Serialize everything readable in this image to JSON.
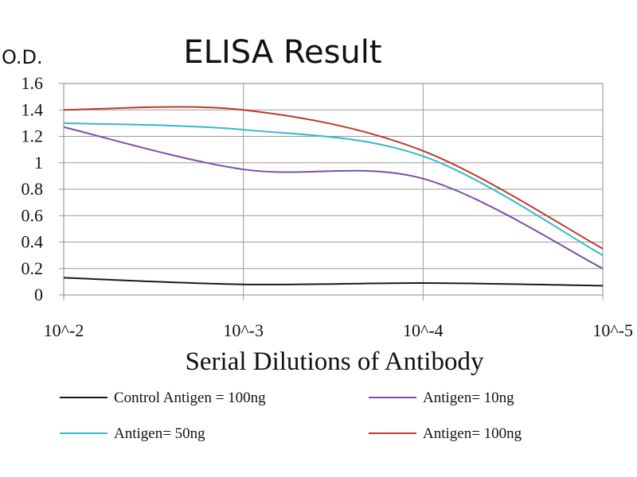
{
  "chart_data": {
    "type": "line",
    "title": "ELISA Result",
    "ylabel": "O.D.",
    "xlabel": "Serial Dilutions of Antibody",
    "ylim": [
      0,
      1.6
    ],
    "y_ticks": [
      0,
      0.2,
      0.4,
      0.6,
      0.8,
      1,
      1.2,
      1.4,
      1.6
    ],
    "y_tick_labels": [
      "0",
      "0.2",
      "0.4",
      "0.6",
      "0.8",
      "1",
      "1.2",
      "1.4",
      "1.6"
    ],
    "categories": [
      "10^-2",
      "10^-3",
      "10^-4",
      "10^-5"
    ],
    "grid": true,
    "legend_position": "bottom",
    "series": [
      {
        "name": "Control Antigen = 100ng",
        "color": "#1a1a1a",
        "values": [
          0.13,
          0.08,
          0.09,
          0.07
        ]
      },
      {
        "name": "Antigen= 10ng",
        "color": "#7a4fa8",
        "values": [
          1.27,
          0.95,
          0.88,
          0.2
        ]
      },
      {
        "name": "Antigen= 50ng",
        "color": "#33b8cc",
        "values": [
          1.3,
          1.25,
          1.05,
          0.3
        ]
      },
      {
        "name": "Antigen= 100ng",
        "color": "#c0392b",
        "values": [
          1.4,
          1.4,
          1.09,
          0.35
        ]
      }
    ]
  }
}
